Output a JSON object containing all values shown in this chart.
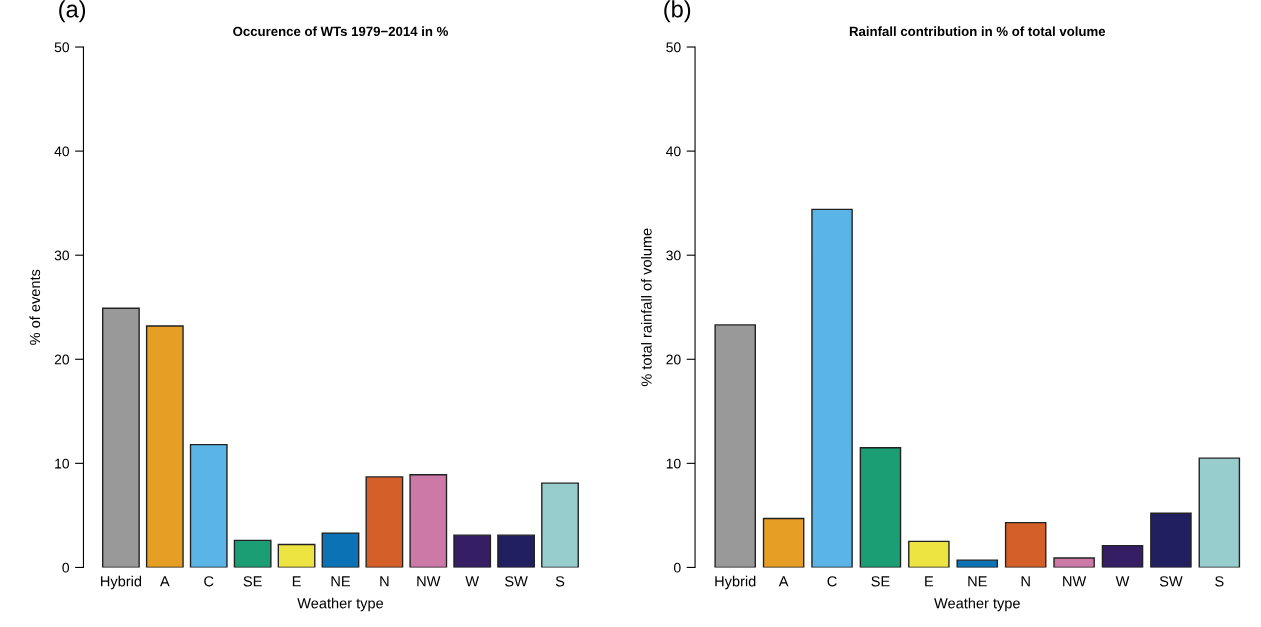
{
  "chart_data": [
    {
      "type": "bar",
      "title": "Occurence of WTs 1979−2014 in %",
      "xlabel": "Weather type",
      "ylabel": "% of events",
      "annotations": [
        "(a)"
      ],
      "categories": [
        "Hybrid",
        "A",
        "C",
        "SE",
        "E",
        "NE",
        "N",
        "NW",
        "W",
        "SW",
        "S"
      ],
      "values": [
        24.9,
        23.2,
        11.8,
        2.6,
        2.2,
        3.3,
        8.7,
        8.9,
        3.1,
        3.1,
        8.1
      ],
      "colors": [
        "#999999",
        "#e69f24",
        "#5ab4e6",
        "#1b9e74",
        "#ede442",
        "#0b72b5",
        "#d55f28",
        "#cc79a7",
        "#351e63",
        "#211f5f",
        "#97cdcc"
      ],
      "ylim": [
        0,
        50
      ],
      "yticks": [
        0,
        10,
        20,
        30,
        40,
        50
      ],
      "grid": false,
      "legend": false
    },
    {
      "type": "bar",
      "title": "Rainfall contribution in % of total volume",
      "xlabel": "Weather type",
      "ylabel": "% total rainfall of volume",
      "annotations": [
        "(b)"
      ],
      "categories": [
        "Hybrid",
        "A",
        "C",
        "SE",
        "E",
        "NE",
        "N",
        "NW",
        "W",
        "SW",
        "S"
      ],
      "values": [
        23.3,
        4.7,
        34.4,
        11.5,
        2.5,
        0.7,
        4.3,
        0.9,
        2.1,
        5.2,
        10.5
      ],
      "colors": [
        "#999999",
        "#e69f24",
        "#5ab4e6",
        "#1b9e74",
        "#ede442",
        "#0b72b5",
        "#d55f28",
        "#cc79a7",
        "#351e63",
        "#211f5f",
        "#97cdcc"
      ],
      "ylim": [
        0,
        50
      ],
      "yticks": [
        0,
        10,
        20,
        30,
        40,
        50
      ],
      "grid": false,
      "legend": false
    }
  ]
}
